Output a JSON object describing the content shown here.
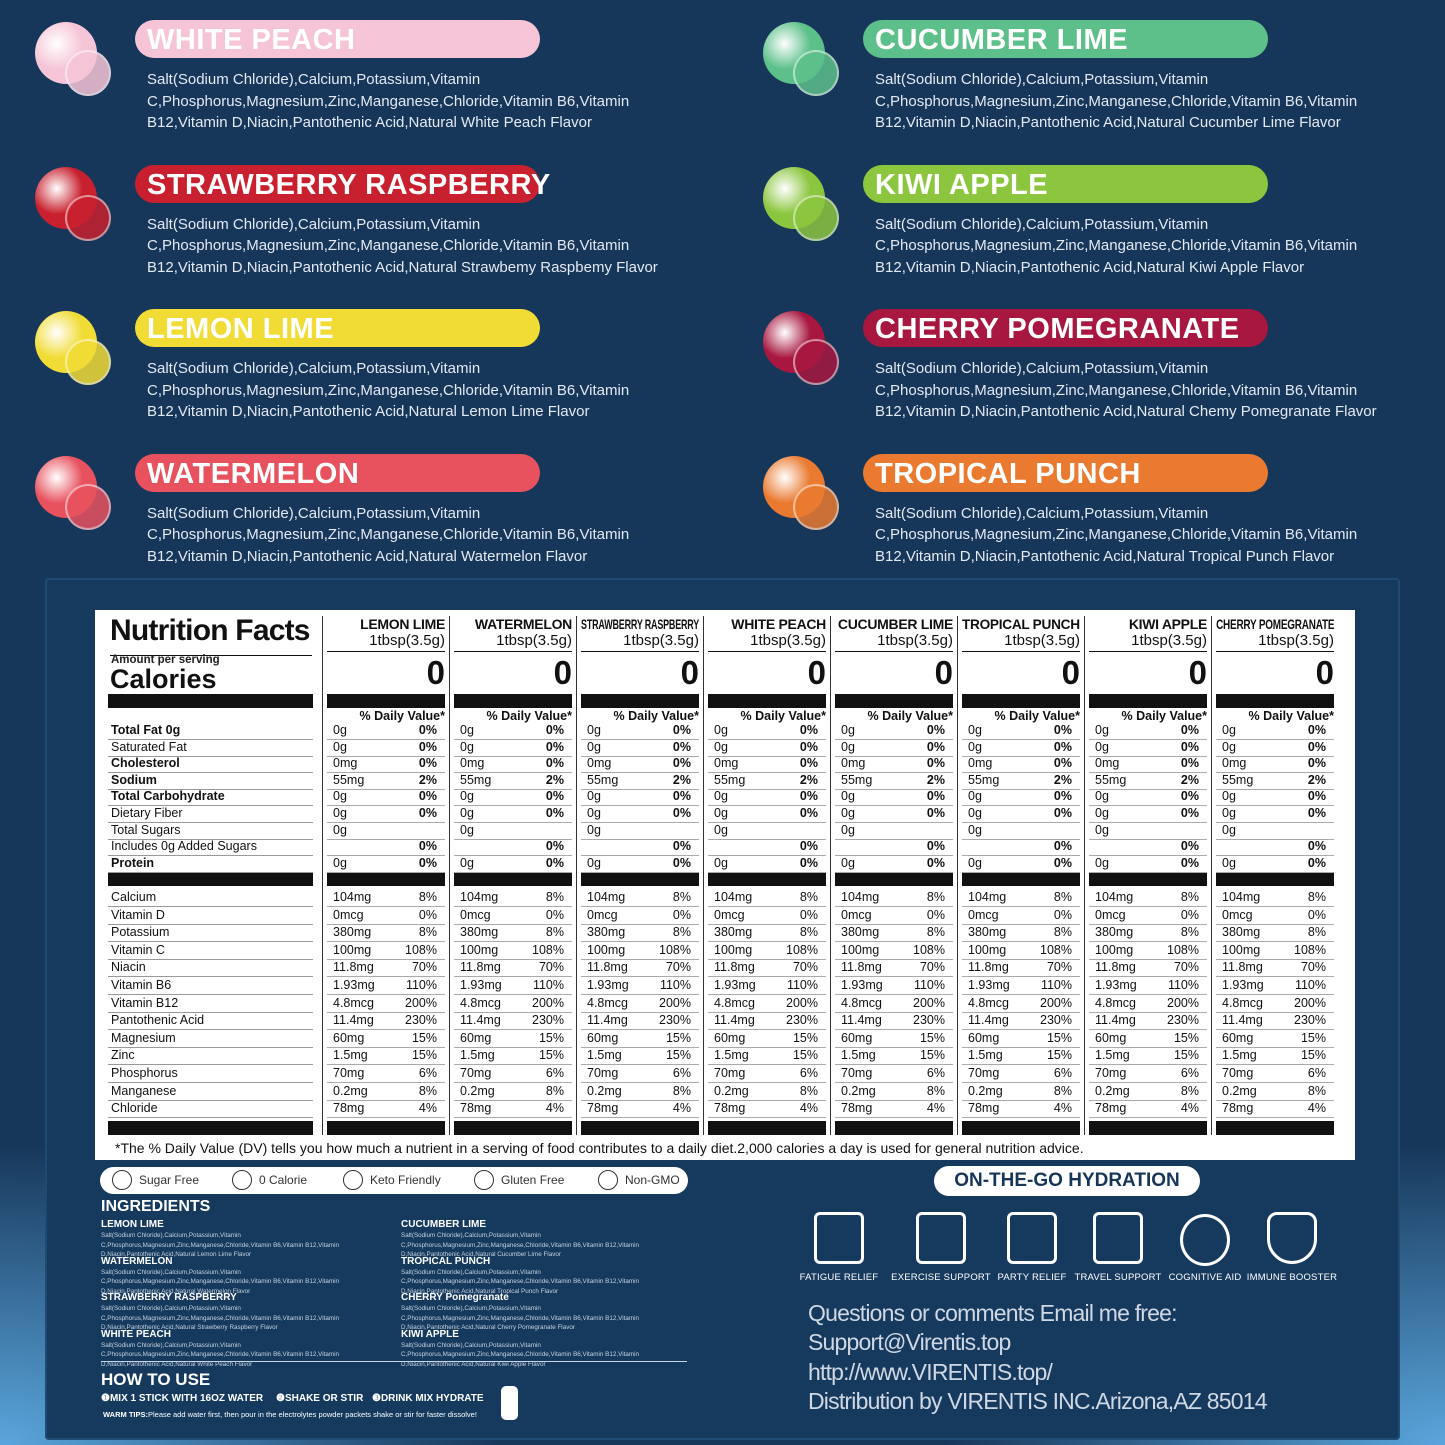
{
  "flavors": [
    {
      "name": "WHITE PEACH",
      "color": "#f5c5d7",
      "ingredients": "Salt(Sodium Chloride),Calcium,Potassium,Vitamin C,Phosphorus,Magnesium,Zinc,Manganese,Chloride,Vitamin B6,Vitamin B12,Vitamin D,Niacin,Pantothenic Acid,Natural White Peach Flavor"
    },
    {
      "name": "STRAWBERRY RASPBERRY",
      "color": "#c8202e",
      "ingredients": "Salt(Sodium Chloride),Calcium,Potassium,Vitamin C,Phosphorus,Magnesium,Zinc,Manganese,Chloride,Vitamin B6,Vitamin B12,Vitamin D,Niacin,Pantothenic Acid,Natural Strawbemy Raspbemy Flavor"
    },
    {
      "name": "LEMON LIME",
      "color": "#f1dc36",
      "ingredients": "Salt(Sodium Chloride),Calcium,Potassium,Vitamin C,Phosphorus,Magnesium,Zinc,Manganese,Chloride,Vitamin B6,Vitamin B12,Vitamin D,Niacin,Pantothenic Acid,Natural Lemon Lime Flavor"
    },
    {
      "name": "WATERMELON",
      "color": "#e8525f",
      "ingredients": "Salt(Sodium Chloride),Calcium,Potassium,Vitamin C,Phosphorus,Magnesium,Zinc,Manganese,Chloride,Vitamin B6,Vitamin B12,Vitamin D,Niacin,Pantothenic Acid,Natural Watermelon Flavor"
    },
    {
      "name": "CUCUMBER LIME",
      "color": "#5dc08b",
      "ingredients": "Salt(Sodium Chloride),Calcium,Potassium,Vitamin C,Phosphorus,Magnesium,Zinc,Manganese,Chloride,Vitamin B6,Vitamin B12,Vitamin D,Niacin,Pantothenic Acid,Natural Cucumber Lime Flavor"
    },
    {
      "name": "KIWI APPLE",
      "color": "#8cc63f",
      "ingredients": "Salt(Sodium Chloride),Calcium,Potassium,Vitamin C,Phosphorus,Magnesium,Zinc,Manganese,Chloride,Vitamin B6,Vitamin B12,Vitamin D,Niacin,Pantothenic Acid,Natural Kiwi Apple Flavor"
    },
    {
      "name": "CHERRY POMEGRANATE",
      "color": "#a8173f",
      "ingredients": "Salt(Sodium Chloride),Calcium,Potassium,Vitamin C,Phosphorus,Magnesium,Zinc,Manganese,Chloride,Vitamin B6,Vitamin B12,Vitamin D,Niacin,Pantothenic Acid,Natural Chemy Pomegranate Flavor"
    },
    {
      "name": "TROPICAL PUNCH",
      "color": "#ea7a30",
      "ingredients": "Salt(Sodium Chloride),Calcium,Potassium,Vitamin C,Phosphorus,Magnesium,Zinc,Manganese,Chloride,Vitamin B6,Vitamin B12,Vitamin D,Niacin,Pantothenic Acid,Natural Tropical Punch Flavor"
    }
  ],
  "nutrition": {
    "title": "Nutrition Facts",
    "amount_per_serving": "Amount per serving",
    "calories_label": "Calories",
    "nutrients": [
      "Total Fat 0g",
      "Saturated Fat",
      "Cholesterol",
      "Sodium",
      "Total Carbohydrate",
      "Dietary Fiber",
      "Total Sugars",
      "Includes 0g Added Sugars",
      "Protein",
      "Calcium",
      "Vitamin D",
      "Potassium",
      "Vitamin C",
      "Niacin",
      "Vitamin B6",
      "Vitamin B12",
      "Pantothenic Acid",
      "Magnesium",
      "Zinc",
      "Phosphorus",
      "Manganese",
      "Chloride"
    ],
    "columns": [
      {
        "name": "LEMON LIME",
        "serving": "1tbsp(3.5g)",
        "calories": 0,
        "daily_value_header": "% Daily Value*",
        "values": [
          [
            "0g",
            "0%"
          ],
          [
            "0g",
            "0%"
          ],
          [
            "0mg",
            "0%"
          ],
          [
            "55mg",
            "2%"
          ],
          [
            "0g",
            "0%"
          ],
          [
            "0g",
            "0%"
          ],
          [
            "0g",
            null
          ],
          [
            null,
            "0%"
          ],
          [
            "0g",
            "0%"
          ],
          [
            "104mg",
            "8%"
          ],
          [
            "0mcg",
            "0%"
          ],
          [
            "380mg",
            "8%"
          ],
          [
            "100mg",
            "108%"
          ],
          [
            "11.8mg",
            "70%"
          ],
          [
            "1.93mg",
            "110%"
          ],
          [
            "4.8mcg",
            "200%"
          ],
          [
            "11.4mg",
            "230%"
          ],
          [
            "60mg",
            "15%"
          ],
          [
            "1.5mg",
            "15%"
          ],
          [
            "70mg",
            "6%"
          ],
          [
            "0.2mg",
            "8%"
          ],
          [
            "78mg",
            "4%"
          ]
        ]
      },
      {
        "name": "WATERMELON",
        "serving": "1tbsp(3.5g)",
        "calories": 0,
        "daily_value_header": "% Daily Value*",
        "values": [
          [
            "0g",
            "0%"
          ],
          [
            "0g",
            "0%"
          ],
          [
            "0mg",
            "0%"
          ],
          [
            "55mg",
            "2%"
          ],
          [
            "0g",
            "0%"
          ],
          [
            "0g",
            "0%"
          ],
          [
            "0g",
            null
          ],
          [
            null,
            "0%"
          ],
          [
            "0g",
            "0%"
          ],
          [
            "104mg",
            "8%"
          ],
          [
            "0mcg",
            "0%"
          ],
          [
            "380mg",
            "8%"
          ],
          [
            "100mg",
            "108%"
          ],
          [
            "11.8mg",
            "70%"
          ],
          [
            "1.93mg",
            "110%"
          ],
          [
            "4.8mcg",
            "200%"
          ],
          [
            "11.4mg",
            "230%"
          ],
          [
            "60mg",
            "15%"
          ],
          [
            "1.5mg",
            "15%"
          ],
          [
            "70mg",
            "6%"
          ],
          [
            "0.2mg",
            "8%"
          ],
          [
            "78mg",
            "4%"
          ]
        ]
      },
      {
        "name": "STRAWBERRY RASPBERRY",
        "serving": "1tbsp(3.5g)",
        "calories": 0,
        "daily_value_header": "% Daily Value*",
        "values": [
          [
            "0g",
            "0%"
          ],
          [
            "0g",
            "0%"
          ],
          [
            "0mg",
            "0%"
          ],
          [
            "55mg",
            "2%"
          ],
          [
            "0g",
            "0%"
          ],
          [
            "0g",
            "0%"
          ],
          [
            "0g",
            null
          ],
          [
            null,
            "0%"
          ],
          [
            "0g",
            "0%"
          ],
          [
            "104mg",
            "8%"
          ],
          [
            "0mcg",
            "0%"
          ],
          [
            "380mg",
            "8%"
          ],
          [
            "100mg",
            "108%"
          ],
          [
            "11.8mg",
            "70%"
          ],
          [
            "1.93mg",
            "110%"
          ],
          [
            "4.8mcg",
            "200%"
          ],
          [
            "11.4mg",
            "230%"
          ],
          [
            "60mg",
            "15%"
          ],
          [
            "1.5mg",
            "15%"
          ],
          [
            "70mg",
            "6%"
          ],
          [
            "0.2mg",
            "8%"
          ],
          [
            "78mg",
            "4%"
          ]
        ]
      },
      {
        "name": "WHITE PEACH",
        "serving": "1tbsp(3.5g)",
        "calories": 0,
        "daily_value_header": "% Daily Value*",
        "values": [
          [
            "0g",
            "0%"
          ],
          [
            "0g",
            "0%"
          ],
          [
            "0mg",
            "0%"
          ],
          [
            "55mg",
            "2%"
          ],
          [
            "0g",
            "0%"
          ],
          [
            "0g",
            "0%"
          ],
          [
            "0g",
            null
          ],
          [
            null,
            "0%"
          ],
          [
            "0g",
            "0%"
          ],
          [
            "104mg",
            "8%"
          ],
          [
            "0mcg",
            "0%"
          ],
          [
            "380mg",
            "8%"
          ],
          [
            "100mg",
            "108%"
          ],
          [
            "11.8mg",
            "70%"
          ],
          [
            "1.93mg",
            "110%"
          ],
          [
            "4.8mcg",
            "200%"
          ],
          [
            "11.4mg",
            "230%"
          ],
          [
            "60mg",
            "15%"
          ],
          [
            "1.5mg",
            "15%"
          ],
          [
            "70mg",
            "6%"
          ],
          [
            "0.2mg",
            "8%"
          ],
          [
            "78mg",
            "4%"
          ]
        ]
      },
      {
        "name": "CUCUMBER LIME",
        "serving": "1tbsp(3.5g)",
        "calories": 0,
        "daily_value_header": "% Daily Value*",
        "values": [
          [
            "0g",
            "0%"
          ],
          [
            "0g",
            "0%"
          ],
          [
            "0mg",
            "0%"
          ],
          [
            "55mg",
            "2%"
          ],
          [
            "0g",
            "0%"
          ],
          [
            "0g",
            "0%"
          ],
          [
            "0g",
            null
          ],
          [
            null,
            "0%"
          ],
          [
            "0g",
            "0%"
          ],
          [
            "104mg",
            "8%"
          ],
          [
            "0mcg",
            "0%"
          ],
          [
            "380mg",
            "8%"
          ],
          [
            "100mg",
            "108%"
          ],
          [
            "11.8mg",
            "70%"
          ],
          [
            "1.93mg",
            "110%"
          ],
          [
            "4.8mcg",
            "200%"
          ],
          [
            "11.4mg",
            "230%"
          ],
          [
            "60mg",
            "15%"
          ],
          [
            "1.5mg",
            "15%"
          ],
          [
            "70mg",
            "6%"
          ],
          [
            "0.2mg",
            "8%"
          ],
          [
            "78mg",
            "4%"
          ]
        ]
      },
      {
        "name": "TROPICAL PUNCH",
        "serving": "1tbsp(3.5g)",
        "calories": 0,
        "daily_value_header": "% Daily Value*",
        "values": [
          [
            "0g",
            "0%"
          ],
          [
            "0g",
            "0%"
          ],
          [
            "0mg",
            "0%"
          ],
          [
            "55mg",
            "2%"
          ],
          [
            "0g",
            "0%"
          ],
          [
            "0g",
            "0%"
          ],
          [
            "0g",
            null
          ],
          [
            null,
            "0%"
          ],
          [
            "0g",
            "0%"
          ],
          [
            "104mg",
            "8%"
          ],
          [
            "0mcg",
            "0%"
          ],
          [
            "380mg",
            "8%"
          ],
          [
            "100mg",
            "108%"
          ],
          [
            "11.8mg",
            "70%"
          ],
          [
            "1.93mg",
            "110%"
          ],
          [
            "4.8mcg",
            "200%"
          ],
          [
            "11.4mg",
            "230%"
          ],
          [
            "60mg",
            "15%"
          ],
          [
            "1.5mg",
            "15%"
          ],
          [
            "70mg",
            "6%"
          ],
          [
            "0.2mg",
            "8%"
          ],
          [
            "78mg",
            "4%"
          ]
        ]
      },
      {
        "name": "KIWI APPLE",
        "serving": "1tbsp(3.5g)",
        "calories": 0,
        "daily_value_header": "% Daily Value*",
        "values": [
          [
            "0g",
            "0%"
          ],
          [
            "0g",
            "0%"
          ],
          [
            "0mg",
            "0%"
          ],
          [
            "55mg",
            "2%"
          ],
          [
            "0g",
            "0%"
          ],
          [
            "0g",
            "0%"
          ],
          [
            "0g",
            null
          ],
          [
            null,
            "0%"
          ],
          [
            "0g",
            "0%"
          ],
          [
            "104mg",
            "8%"
          ],
          [
            "0mcg",
            "0%"
          ],
          [
            "380mg",
            "8%"
          ],
          [
            "100mg",
            "108%"
          ],
          [
            "11.8mg",
            "70%"
          ],
          [
            "1.93mg",
            "110%"
          ],
          [
            "4.8mcg",
            "200%"
          ],
          [
            "11.4mg",
            "230%"
          ],
          [
            "60mg",
            "15%"
          ],
          [
            "1.5mg",
            "15%"
          ],
          [
            "70mg",
            "6%"
          ],
          [
            "0.2mg",
            "8%"
          ],
          [
            "78mg",
            "4%"
          ]
        ]
      },
      {
        "name": "CHERRY POMEGRANATE",
        "serving": "1tbsp(3.5g)",
        "calories": 0,
        "daily_value_header": "% Daily Value*",
        "values": [
          [
            "0g",
            "0%"
          ],
          [
            "0g",
            "0%"
          ],
          [
            "0mg",
            "0%"
          ],
          [
            "55mg",
            "2%"
          ],
          [
            "0g",
            "0%"
          ],
          [
            "0g",
            "0%"
          ],
          [
            "0g",
            null
          ],
          [
            null,
            "0%"
          ],
          [
            "0g",
            "0%"
          ],
          [
            "104mg",
            "8%"
          ],
          [
            "0mcg",
            "0%"
          ],
          [
            "380mg",
            "8%"
          ],
          [
            "100mg",
            "108%"
          ],
          [
            "11.8mg",
            "70%"
          ],
          [
            "1.93mg",
            "110%"
          ],
          [
            "4.8mcg",
            "200%"
          ],
          [
            "11.4mg",
            "230%"
          ],
          [
            "60mg",
            "15%"
          ],
          [
            "1.5mg",
            "15%"
          ],
          [
            "70mg",
            "6%"
          ],
          [
            "0.2mg",
            "8%"
          ],
          [
            "78mg",
            "4%"
          ]
        ]
      }
    ],
    "footnote": "*The % Daily Value (DV) tells you how much a nutrient in a serving  of food contributes to a daily diet.2,000 calories a day is used  for general nutrition advice."
  },
  "badges": [
    "Sugar Free",
    "0 Calorie",
    "Keto Friendly",
    "Gluten Free",
    "Non-GMO"
  ],
  "ingredients": {
    "title": "INGREDIENTS",
    "items": [
      {
        "name": "LEMON LIME",
        "text": "Salt(Sodium Chloride),Calcium,Potassium,Vitamin C,Phosphorus,Magnesium,Zinc,Manganese,Chloride,Vitamin B6,Vitamin B12,Vitamin D,Niacin,Pantothenic Acid,Natural Lemon Lime Flavor"
      },
      {
        "name": "WATERMELON",
        "text": "Salt(Sodium Chloride),Calcium,Potassium,Vitamin C,Phosphorus,Magnesium,Zinc,Manganese,Chloride,Vitamin B6,Vitamin B12,Vitamin D,Niacin,Pantothenic Acid,Natural Watermelon Flavor"
      },
      {
        "name": "STRAWBERRY RASPBERRY",
        "text": "Salt(Sodium Chloride),Calcium,Potassium,Vitamin C,Phosphorus,Magnesium,Zinc,Manganese,Chloride,Vitamin B6,Vitamin B12,Vitamin D,Niacin,Pantothenic Acid,Natural Strawberry Raspberry Flavor"
      },
      {
        "name": "WHITE PEACH",
        "text": "Salt(Sodium Chloride),Calcium,Potassium,Vitamin C,Phosphorus,Magnesium,Zinc,Manganese,Chloride,Vitamin B6,Vitamin B12,Vitamin D,Niacin,Pantothenic Acid,Natural White Peach Flavor"
      },
      {
        "name": "CUCUMBER LIME",
        "text": "Salt(Sodium Chloride),Calcium,Potassium,Vitamin C,Phosphorus,Magnesium,Zinc,Manganese,Chloride,Vitamin B6,Vitamin B12,Vitamin D,Niacin,Pantothenic Acid,Natural Cucumber Lime Flavor"
      },
      {
        "name": "TROPICAL PUNCH",
        "text": "Salt(Sodium Chloride),Calcium,Potassium,Vitamin C,Phosphorus,Magnesium,Zinc,Manganese,Chloride,Vitamin B6,Vitamin B12,Vitamin D,Niacin,Pantothenic Acid,Natural Tropical Punch Flavor"
      },
      {
        "name": "CHERRY Pomegranate",
        "text": "Salt(Sodium Chloride),Calcium,Potassium,Vitamin C,Phosphorus,Magnesium,Zinc,Manganese,Chloride,Vitamin B6,Vitamin B12,Vitamin D,Niacin,Pantothenic Acid,Natural Cherry Pomegranate Flavor"
      },
      {
        "name": "KIWI APPLE",
        "text": "Salt(Sodium Chloride),Calcium,Potassium,Vitamin C,Phosphorus,Magnesium,Zinc,Manganese,Chloride,Vitamin B6,Vitamin B12,Vitamin D,Niacin,Pantothenic Acid,Natural Kiwi Apple Flavor"
      }
    ]
  },
  "how_to_use": {
    "title": "HOW TO USE",
    "steps": [
      "❶MIX 1 STICK WITH 16OZ WATER",
      "❷SHAKE OR STIR",
      "❸DRINK MIX HYDRATE"
    ],
    "tips_label": "WARM TIPS:",
    "tips": "Please add water first, then pour in the electrolytes powder packets shake or stir for faster dissolve!"
  },
  "hydration": {
    "title": "ON-THE-GO HYDRATION",
    "benefits": [
      "FATIGUE RELIEF",
      "EXERCISE SUPPORT",
      "PARTY RELIEF",
      "TRAVEL SUPPORT",
      "COGNITIVE AID",
      "IMMUNE BOOSTER"
    ]
  },
  "contact": [
    "Questions or comments Email me free:",
    "Support@Virentis.top",
    "http://www.VIRENTIS.top/",
    "Distribution by VIRENTIS INC.Arizona,AZ 85014"
  ]
}
